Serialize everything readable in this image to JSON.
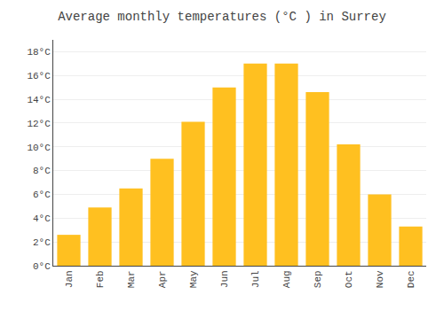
{
  "chart_data": {
    "type": "bar",
    "title": "Average monthly temperatures (°C ) in Surrey",
    "categories": [
      "Jan",
      "Feb",
      "Mar",
      "Apr",
      "May",
      "Jun",
      "Jul",
      "Aug",
      "Sep",
      "Oct",
      "Nov",
      "Dec"
    ],
    "values": [
      2.6,
      4.9,
      6.5,
      9.0,
      12.1,
      15.0,
      17.0,
      17.0,
      14.6,
      10.2,
      6.0,
      3.3
    ],
    "color": "#FFC020",
    "ylim": [
      0,
      19
    ],
    "yticks": [
      {
        "value": 0,
        "label": "0°C"
      },
      {
        "value": 2,
        "label": "2°C"
      },
      {
        "value": 4,
        "label": "4°C"
      },
      {
        "value": 6,
        "label": "6°C"
      },
      {
        "value": 8,
        "label": "8°C"
      },
      {
        "value": 10,
        "label": "10°C"
      },
      {
        "value": 12,
        "label": "12°C"
      },
      {
        "value": 14,
        "label": "14°C"
      },
      {
        "value": 16,
        "label": "16°C"
      },
      {
        "value": 18,
        "label": "18°C"
      }
    ],
    "grid": true
  }
}
